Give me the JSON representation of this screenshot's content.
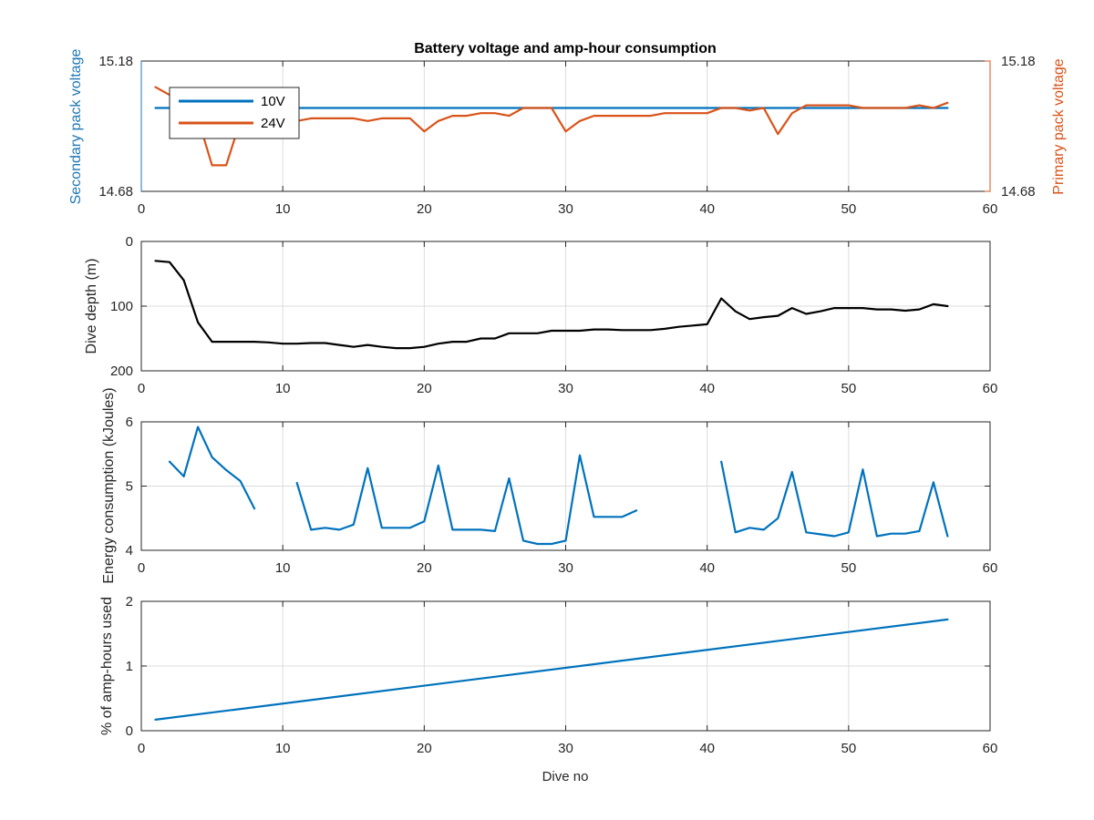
{
  "chart_data": [
    {
      "type": "line",
      "title": "Battery voltage and amp-hour consumption",
      "xlabel": "",
      "ylabel_left": "Secondary pack voltage",
      "ylabel_right": "Primary pack voltage",
      "xlim": [
        0,
        60
      ],
      "ylim": [
        14.68,
        15.18
      ],
      "ylim_right": [
        14.68,
        15.18
      ],
      "x_ticks": [
        "0",
        "10",
        "20",
        "30",
        "40",
        "50",
        "60"
      ],
      "y_ticks_left": [
        "14.68",
        "15.18"
      ],
      "y_ticks_right": [
        "14.68",
        "15.18"
      ],
      "grid": true,
      "legend": {
        "placement": "top-left"
      },
      "colors": {
        "left_axis": "#1f77b4",
        "right_axis": "#d95319"
      },
      "series": [
        {
          "name": "10V",
          "color": "#0072bd",
          "axis": "left",
          "points": [
            [
              1,
              15.0
            ],
            [
              57,
              15.0
            ]
          ]
        },
        {
          "name": "24V",
          "color": "#d95319",
          "axis": "right",
          "points": [
            [
              1,
              15.08
            ],
            [
              2,
              15.05
            ],
            [
              3,
              15.03
            ],
            [
              4,
              14.96
            ],
            [
              5,
              14.78
            ],
            [
              6,
              14.78
            ],
            [
              7,
              14.95
            ],
            [
              8,
              14.96
            ],
            [
              9,
              14.96
            ],
            [
              10,
              14.96
            ],
            [
              11,
              14.95
            ],
            [
              12,
              14.96
            ],
            [
              13,
              14.96
            ],
            [
              14,
              14.96
            ],
            [
              15,
              14.96
            ],
            [
              16,
              14.95
            ],
            [
              17,
              14.96
            ],
            [
              18,
              14.96
            ],
            [
              19,
              14.96
            ],
            [
              20,
              14.91
            ],
            [
              21,
              14.95
            ],
            [
              22,
              14.97
            ],
            [
              23,
              14.97
            ],
            [
              24,
              14.98
            ],
            [
              25,
              14.98
            ],
            [
              26,
              14.97
            ],
            [
              27,
              15.0
            ],
            [
              28,
              15.0
            ],
            [
              29,
              15.0
            ],
            [
              30,
              14.91
            ],
            [
              31,
              14.95
            ],
            [
              32,
              14.97
            ],
            [
              33,
              14.97
            ],
            [
              34,
              14.97
            ],
            [
              35,
              14.97
            ],
            [
              36,
              14.97
            ],
            [
              37,
              14.98
            ],
            [
              38,
              14.98
            ],
            [
              39,
              14.98
            ],
            [
              40,
              14.98
            ],
            [
              41,
              15.0
            ],
            [
              42,
              15.0
            ],
            [
              43,
              14.99
            ],
            [
              44,
              15.0
            ],
            [
              45,
              14.9
            ],
            [
              46,
              14.98
            ],
            [
              47,
              15.01
            ],
            [
              48,
              15.01
            ],
            [
              49,
              15.01
            ],
            [
              50,
              15.01
            ],
            [
              51,
              15.0
            ],
            [
              52,
              15.0
            ],
            [
              53,
              15.0
            ],
            [
              54,
              15.0
            ],
            [
              55,
              15.01
            ],
            [
              56,
              15.0
            ],
            [
              57,
              15.02
            ]
          ]
        }
      ]
    },
    {
      "type": "line",
      "title": "",
      "xlabel": "",
      "ylabel": "Dive depth (m)",
      "xlim": [
        0,
        60
      ],
      "ylim": [
        0,
        200
      ],
      "y_reversed": true,
      "x_ticks": [
        "0",
        "10",
        "20",
        "30",
        "40",
        "50",
        "60"
      ],
      "y_ticks": [
        "0",
        "100",
        "200"
      ],
      "grid": true,
      "series": [
        {
          "color": "#000000",
          "points": [
            [
              1,
              30
            ],
            [
              2,
              32
            ],
            [
              3,
              60
            ],
            [
              4,
              125
            ],
            [
              5,
              155
            ],
            [
              6,
              155
            ],
            [
              7,
              155
            ],
            [
              8,
              155
            ],
            [
              9,
              156
            ],
            [
              10,
              158
            ],
            [
              11,
              158
            ],
            [
              12,
              157
            ],
            [
              13,
              157
            ],
            [
              14,
              160
            ],
            [
              15,
              163
            ],
            [
              16,
              160
            ],
            [
              17,
              163
            ],
            [
              18,
              165
            ],
            [
              19,
              165
            ],
            [
              20,
              163
            ],
            [
              21,
              158
            ],
            [
              22,
              155
            ],
            [
              23,
              155
            ],
            [
              24,
              150
            ],
            [
              25,
              150
            ],
            [
              26,
              142
            ],
            [
              27,
              142
            ],
            [
              28,
              142
            ],
            [
              29,
              138
            ],
            [
              30,
              138
            ],
            [
              31,
              138
            ],
            [
              32,
              136
            ],
            [
              33,
              136
            ],
            [
              34,
              137
            ],
            [
              35,
              137
            ],
            [
              36,
              137
            ],
            [
              37,
              135
            ],
            [
              38,
              132
            ],
            [
              39,
              130
            ],
            [
              40,
              128
            ],
            [
              41,
              88
            ],
            [
              42,
              108
            ],
            [
              43,
              120
            ],
            [
              44,
              117
            ],
            [
              45,
              115
            ],
            [
              46,
              103
            ],
            [
              47,
              112
            ],
            [
              48,
              108
            ],
            [
              49,
              103
            ],
            [
              50,
              103
            ],
            [
              51,
              103
            ],
            [
              52,
              105
            ],
            [
              53,
              105
            ],
            [
              54,
              107
            ],
            [
              55,
              105
            ],
            [
              56,
              97
            ],
            [
              57,
              100
            ]
          ]
        }
      ]
    },
    {
      "type": "line",
      "title": "",
      "xlabel": "",
      "ylabel": "Energy consumption (kJoules)",
      "xlim": [
        0,
        60
      ],
      "ylim": [
        4,
        6
      ],
      "x_ticks": [
        "0",
        "10",
        "20",
        "30",
        "40",
        "50",
        "60"
      ],
      "y_ticks": [
        "4",
        "5",
        "6"
      ],
      "grid": true,
      "series": [
        {
          "color": "#0072bd",
          "segments": [
            [
              [
                2,
                5.38
              ],
              [
                3,
                5.15
              ],
              [
                4,
                5.92
              ],
              [
                5,
                5.45
              ],
              [
                6,
                5.25
              ],
              [
                7,
                5.08
              ],
              [
                8,
                4.65
              ]
            ],
            [
              [
                11,
                5.05
              ],
              [
                12,
                4.32
              ],
              [
                13,
                4.35
              ],
              [
                14,
                4.32
              ],
              [
                15,
                4.4
              ],
              [
                16,
                5.28
              ],
              [
                17,
                4.35
              ],
              [
                18,
                4.35
              ],
              [
                19,
                4.35
              ],
              [
                20,
                4.45
              ],
              [
                21,
                5.32
              ],
              [
                22,
                4.32
              ],
              [
                23,
                4.32
              ],
              [
                24,
                4.32
              ],
              [
                25,
                4.3
              ],
              [
                26,
                5.12
              ],
              [
                27,
                4.15
              ],
              [
                28,
                4.1
              ],
              [
                29,
                4.1
              ],
              [
                30,
                4.15
              ],
              [
                31,
                5.48
              ],
              [
                32,
                4.52
              ],
              [
                33,
                4.52
              ],
              [
                34,
                4.52
              ],
              [
                35,
                4.62
              ]
            ],
            [
              [
                41,
                5.38
              ],
              [
                42,
                4.28
              ],
              [
                43,
                4.35
              ],
              [
                44,
                4.32
              ],
              [
                45,
                4.5
              ],
              [
                46,
                5.22
              ],
              [
                47,
                4.28
              ],
              [
                48,
                4.25
              ],
              [
                49,
                4.22
              ],
              [
                50,
                4.28
              ],
              [
                51,
                5.26
              ],
              [
                52,
                4.22
              ],
              [
                53,
                4.26
              ],
              [
                54,
                4.26
              ],
              [
                55,
                4.3
              ],
              [
                56,
                5.06
              ],
              [
                57,
                4.22
              ]
            ]
          ]
        }
      ]
    },
    {
      "type": "line",
      "title": "",
      "xlabel": "Dive no",
      "ylabel": "% of amp-hours used",
      "xlim": [
        0,
        60
      ],
      "ylim": [
        0,
        2
      ],
      "x_ticks": [
        "0",
        "10",
        "20",
        "30",
        "40",
        "50",
        "60"
      ],
      "y_ticks": [
        "0",
        "1",
        "2"
      ],
      "grid": true,
      "series": [
        {
          "color": "#0072bd",
          "points": [
            [
              1,
              0.17
            ],
            [
              57,
              1.72
            ]
          ]
        }
      ]
    }
  ]
}
